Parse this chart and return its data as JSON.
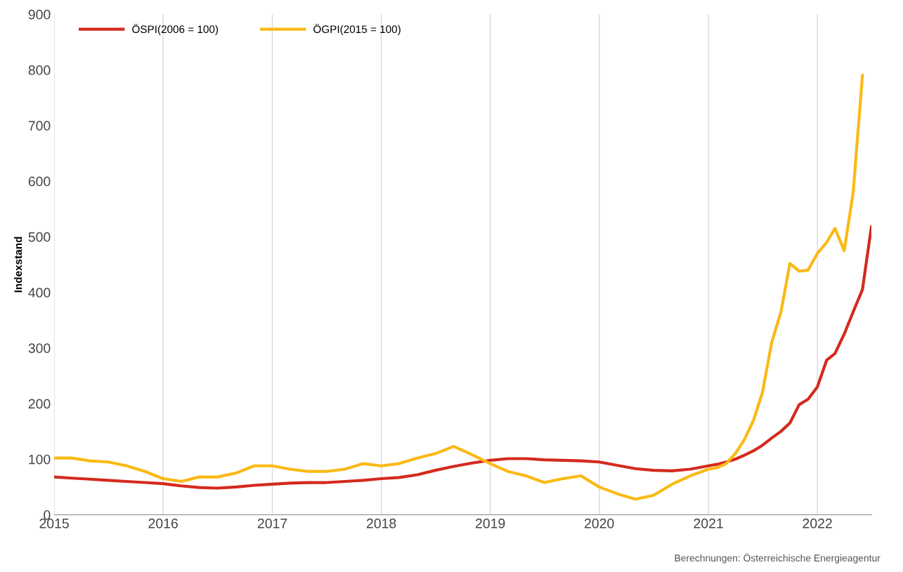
{
  "chart_data": {
    "type": "line",
    "ylabel": "Indexstand",
    "x": [
      "2015-01",
      "2015-03",
      "2015-05",
      "2015-07",
      "2015-09",
      "2015-11",
      "2016-01",
      "2016-03",
      "2016-05",
      "2016-07",
      "2016-09",
      "2016-11",
      "2017-01",
      "2017-03",
      "2017-05",
      "2017-07",
      "2017-09",
      "2017-11",
      "2018-01",
      "2018-03",
      "2018-05",
      "2018-07",
      "2018-09",
      "2018-11",
      "2019-01",
      "2019-03",
      "2019-05",
      "2019-07",
      "2019-09",
      "2019-11",
      "2020-01",
      "2020-03",
      "2020-05",
      "2020-07",
      "2020-09",
      "2020-11",
      "2021-01",
      "2021-02",
      "2021-03",
      "2021-04",
      "2021-05",
      "2021-06",
      "2021-07",
      "2021-08",
      "2021-09",
      "2021-10",
      "2021-11",
      "2021-12",
      "2022-01",
      "2022-02",
      "2022-03",
      "2022-04",
      "2022-05",
      "2022-06",
      "2022-07"
    ],
    "series": [
      {
        "name": "ÖSPI(2006 = 100)",
        "color": "#d42a1e",
        "values": [
          68,
          66,
          64,
          62,
          60,
          58,
          56,
          52,
          49,
          48,
          50,
          53,
          55,
          57,
          58,
          58,
          60,
          62,
          65,
          67,
          72,
          80,
          87,
          93,
          98,
          101,
          101,
          99,
          98,
          97,
          95,
          89,
          83,
          80,
          79,
          82,
          88,
          91,
          95,
          100,
          107,
          115,
          125,
          138,
          150,
          165,
          198,
          208,
          230,
          278,
          290,
          325,
          365,
          405,
          518
        ]
      },
      {
        "name": "ÖGPI(2015 = 100)",
        "color": "#fbb915",
        "values": [
          102,
          102,
          97,
          95,
          88,
          78,
          65,
          60,
          68,
          68,
          75,
          88,
          88,
          82,
          78,
          78,
          82,
          92,
          88,
          92,
          102,
          110,
          123,
          108,
          92,
          78,
          70,
          58,
          65,
          70,
          50,
          38,
          28,
          35,
          55,
          70,
          82,
          85,
          92,
          110,
          135,
          170,
          220,
          310,
          365,
          452,
          438,
          440,
          470,
          490,
          515,
          475,
          580,
          790,
          null
        ]
      }
    ],
    "xlim": [
      "2015-01",
      "2022-07"
    ],
    "xticks": [
      "2015",
      "2016",
      "2017",
      "2018",
      "2019",
      "2020",
      "2021",
      "2022"
    ],
    "ylim": [
      0,
      900
    ],
    "yticks": [
      0,
      100,
      200,
      300,
      400,
      500,
      600,
      700,
      800,
      900
    ],
    "grid": "x",
    "legend": "top left",
    "line_style": "solid",
    "marker": "none",
    "annotations": [
      "Berechnungen: Österreichische Energieagentur"
    ]
  }
}
